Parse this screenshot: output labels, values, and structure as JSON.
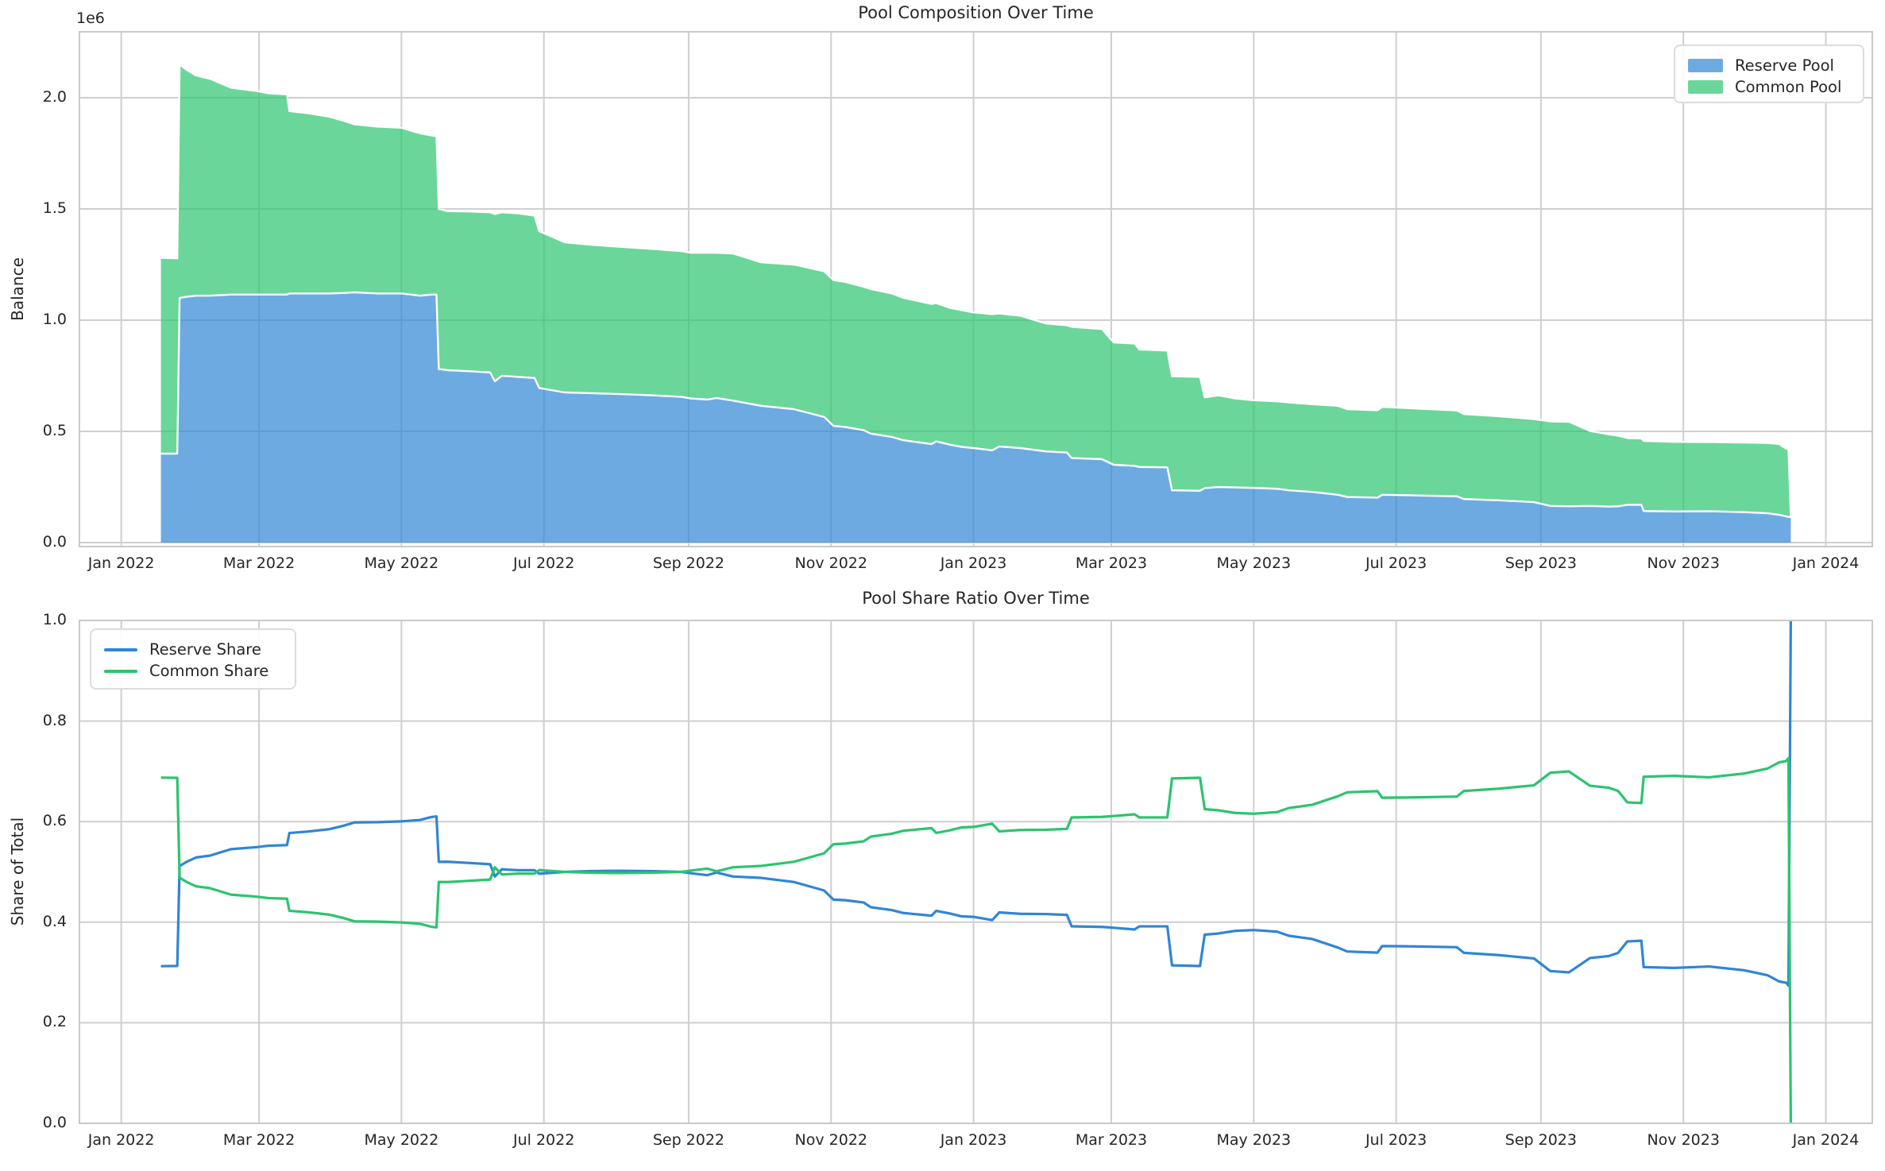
{
  "figure": {
    "background": "#ffffff",
    "grid_color": "#cfcfcf",
    "spine_color": "#c9c9c9",
    "text_color": "#262626"
  },
  "chart_data": [
    {
      "type": "area",
      "stacked": true,
      "title": "Pool Composition Over Time",
      "xlabel": "",
      "ylabel": "Balance",
      "y_offset_label": "1e6",
      "grid": true,
      "legend": {
        "position": "upper right",
        "entries": [
          {
            "label": "Reserve Pool",
            "color": "#6daae2"
          },
          {
            "label": "Common Pool",
            "color": "#6bd699"
          }
        ]
      },
      "ylim": [
        0,
        2300000
      ],
      "yticks": [
        {
          "value": 0,
          "label": "0.0"
        },
        {
          "value": 500000,
          "label": "0.5"
        },
        {
          "value": 1000000,
          "label": "1.0"
        },
        {
          "value": 1500000,
          "label": "1.5"
        },
        {
          "value": 2000000,
          "label": "2.0"
        }
      ],
      "xticks": [
        {
          "date": "2022-01-01",
          "label": "Jan 2022"
        },
        {
          "date": "2022-03-01",
          "label": "Mar 2022"
        },
        {
          "date": "2022-05-01",
          "label": "May 2022"
        },
        {
          "date": "2022-07-01",
          "label": "Jul 2022"
        },
        {
          "date": "2022-09-01",
          "label": "Sep 2022"
        },
        {
          "date": "2022-11-01",
          "label": "Nov 2022"
        },
        {
          "date": "2023-01-01",
          "label": "Jan 2023"
        },
        {
          "date": "2023-03-01",
          "label": "Mar 2023"
        },
        {
          "date": "2023-05-01",
          "label": "May 2023"
        },
        {
          "date": "2023-07-01",
          "label": "Jul 2023"
        },
        {
          "date": "2023-09-01",
          "label": "Sep 2023"
        },
        {
          "date": "2023-11-01",
          "label": "Nov 2023"
        },
        {
          "date": "2024-01-01",
          "label": "Jan 2024"
        }
      ],
      "dates": [
        "2022-01-18",
        "2022-01-25",
        "2022-01-26",
        "2022-01-29",
        "2022-02-02",
        "2022-02-08",
        "2022-02-17",
        "2022-02-28",
        "2022-03-05",
        "2022-03-13",
        "2022-03-14",
        "2022-03-22",
        "2022-03-31",
        "2022-04-06",
        "2022-04-11",
        "2022-04-21",
        "2022-05-01",
        "2022-05-09",
        "2022-05-14",
        "2022-05-16",
        "2022-05-17",
        "2022-05-21",
        "2022-05-31",
        "2022-06-08",
        "2022-06-10",
        "2022-06-13",
        "2022-06-20",
        "2022-06-27",
        "2022-06-29",
        "2022-07-10",
        "2022-07-20",
        "2022-08-02",
        "2022-08-17",
        "2022-08-29",
        "2022-09-02",
        "2022-09-09",
        "2022-09-13",
        "2022-09-20",
        "2022-10-02",
        "2022-10-16",
        "2022-10-29",
        "2022-11-02",
        "2022-11-07",
        "2022-11-15",
        "2022-11-18",
        "2022-11-27",
        "2022-12-02",
        "2022-12-14",
        "2022-12-16",
        "2022-12-22",
        "2022-12-27",
        "2023-01-01",
        "2023-01-09",
        "2023-01-12",
        "2023-01-21",
        "2023-02-01",
        "2023-02-10",
        "2023-02-12",
        "2023-02-25",
        "2023-03-02",
        "2023-03-11",
        "2023-03-13",
        "2023-03-25",
        "2023-03-27",
        "2023-04-08",
        "2023-04-10",
        "2023-04-16",
        "2023-04-23",
        "2023-05-01",
        "2023-05-11",
        "2023-05-16",
        "2023-05-26",
        "2023-06-06",
        "2023-06-10",
        "2023-06-23",
        "2023-06-25",
        "2023-07-05",
        "2023-07-27",
        "2023-07-30",
        "2023-08-14",
        "2023-08-29",
        "2023-09-05",
        "2023-09-13",
        "2023-09-22",
        "2023-09-30",
        "2023-10-04",
        "2023-10-08",
        "2023-10-14",
        "2023-10-15",
        "2023-10-28",
        "2023-11-12",
        "2023-11-27",
        "2023-12-07",
        "2023-12-12",
        "2023-12-15",
        "2023-12-16",
        "2023-12-17"
      ],
      "series": [
        {
          "name": "Reserve Pool",
          "line_color": "#2f86d5",
          "fill_opacity": 0.7,
          "edge_color": "#ffffff",
          "values": [
            400000,
            400000,
            1100000,
            1105000,
            1110000,
            1110000,
            1115000,
            1115000,
            1115000,
            1115000,
            1120000,
            1120000,
            1120000,
            1122000,
            1125000,
            1120000,
            1120000,
            1110000,
            1115000,
            1115000,
            780000,
            775000,
            770000,
            765000,
            725000,
            750000,
            745000,
            740000,
            695000,
            675000,
            672000,
            668000,
            662000,
            655000,
            648000,
            643000,
            650000,
            638000,
            615000,
            600000,
            565000,
            525000,
            520000,
            505000,
            490000,
            475000,
            460000,
            443000,
            455000,
            440000,
            430000,
            425000,
            415000,
            432000,
            425000,
            410000,
            405000,
            380000,
            375000,
            350000,
            345000,
            340000,
            338000,
            235000,
            233000,
            245000,
            250000,
            248000,
            246000,
            242000,
            235000,
            228000,
            215000,
            205000,
            202000,
            215000,
            213000,
            208000,
            196000,
            190000,
            182000,
            165000,
            163000,
            165000,
            162000,
            163000,
            170000,
            170000,
            142000,
            140000,
            141000,
            137000,
            132000,
            125000,
            118000,
            115000,
            115000
          ]
        },
        {
          "name": "Common Pool",
          "line_color": "#2bc46e",
          "fill_opacity": 0.7,
          "edge_color": "#ffffff",
          "values": [
            880000,
            878000,
            1050000,
            1020000,
            990000,
            975000,
            930000,
            915000,
            905000,
            900000,
            820000,
            810000,
            795000,
            775000,
            755000,
            750000,
            745000,
            730000,
            715000,
            712000,
            720000,
            715000,
            718000,
            720000,
            752000,
            735000,
            735000,
            730000,
            705000,
            675000,
            668000,
            662000,
            658000,
            655000,
            655000,
            660000,
            653000,
            662000,
            645000,
            650000,
            655000,
            655000,
            652000,
            645000,
            650000,
            645000,
            640000,
            630000,
            622000,
            615000,
            615000,
            610000,
            612000,
            598000,
            595000,
            575000,
            572000,
            590000,
            585000,
            550000,
            550000,
            528000,
            525000,
            513000,
            512000,
            408000,
            412000,
            400000,
            394000,
            393000,
            395000,
            394000,
            400000,
            395000,
            393000,
            395000,
            392000,
            386000,
            382000,
            378000,
            373000,
            380000,
            380000,
            337000,
            325000,
            318000,
            300000,
            298000,
            315000,
            313000,
            311000,
            313000,
            316000,
            318000,
            304000,
            305000,
            0
          ]
        }
      ]
    },
    {
      "type": "line",
      "title": "Pool Share Ratio Over Time",
      "xlabel": "",
      "ylabel": "Share of Total",
      "grid": true,
      "legend": {
        "position": "upper left",
        "entries": [
          {
            "label": "Reserve Share",
            "color": "#2f86d5"
          },
          {
            "label": "Common Share",
            "color": "#2bc46e"
          }
        ]
      },
      "ylim": [
        0,
        1
      ],
      "yticks": [
        {
          "value": 0,
          "label": "0.0"
        },
        {
          "value": 0.2,
          "label": "0.2"
        },
        {
          "value": 0.4,
          "label": "0.4"
        },
        {
          "value": 0.6,
          "label": "0.6"
        },
        {
          "value": 0.8,
          "label": "0.8"
        },
        {
          "value": 1.0,
          "label": "1.0"
        }
      ],
      "xticks": [
        {
          "date": "2022-01-01",
          "label": "Jan 2022"
        },
        {
          "date": "2022-03-01",
          "label": "Mar 2022"
        },
        {
          "date": "2022-05-01",
          "label": "May 2022"
        },
        {
          "date": "2022-07-01",
          "label": "Jul 2022"
        },
        {
          "date": "2022-09-01",
          "label": "Sep 2022"
        },
        {
          "date": "2022-11-01",
          "label": "Nov 2022"
        },
        {
          "date": "2023-01-01",
          "label": "Jan 2023"
        },
        {
          "date": "2023-03-01",
          "label": "Mar 2023"
        },
        {
          "date": "2023-05-01",
          "label": "May 2023"
        },
        {
          "date": "2023-07-01",
          "label": "Jul 2023"
        },
        {
          "date": "2023-09-01",
          "label": "Sep 2023"
        },
        {
          "date": "2023-11-01",
          "label": "Nov 2023"
        },
        {
          "date": "2024-01-01",
          "label": "Jan 2024"
        }
      ],
      "dates": [
        "2022-01-18",
        "2022-01-25",
        "2022-01-26",
        "2022-01-29",
        "2022-02-02",
        "2022-02-08",
        "2022-02-17",
        "2022-02-28",
        "2022-03-05",
        "2022-03-13",
        "2022-03-14",
        "2022-03-22",
        "2022-03-31",
        "2022-04-06",
        "2022-04-11",
        "2022-04-21",
        "2022-05-01",
        "2022-05-09",
        "2022-05-14",
        "2022-05-16",
        "2022-05-17",
        "2022-05-21",
        "2022-05-31",
        "2022-06-08",
        "2022-06-10",
        "2022-06-13",
        "2022-06-20",
        "2022-06-27",
        "2022-06-29",
        "2022-07-10",
        "2022-07-20",
        "2022-08-02",
        "2022-08-17",
        "2022-08-29",
        "2022-09-02",
        "2022-09-09",
        "2022-09-13",
        "2022-09-20",
        "2022-10-02",
        "2022-10-16",
        "2022-10-29",
        "2022-11-02",
        "2022-11-07",
        "2022-11-15",
        "2022-11-18",
        "2022-11-27",
        "2022-12-02",
        "2022-12-14",
        "2022-12-16",
        "2022-12-22",
        "2022-12-27",
        "2023-01-01",
        "2023-01-09",
        "2023-01-12",
        "2023-01-21",
        "2023-02-01",
        "2023-02-10",
        "2023-02-12",
        "2023-02-25",
        "2023-03-02",
        "2023-03-11",
        "2023-03-13",
        "2023-03-25",
        "2023-03-27",
        "2023-04-08",
        "2023-04-10",
        "2023-04-16",
        "2023-04-23",
        "2023-05-01",
        "2023-05-11",
        "2023-05-16",
        "2023-05-26",
        "2023-06-06",
        "2023-06-10",
        "2023-06-23",
        "2023-06-25",
        "2023-07-05",
        "2023-07-27",
        "2023-07-30",
        "2023-08-14",
        "2023-08-29",
        "2023-09-05",
        "2023-09-13",
        "2023-09-22",
        "2023-09-30",
        "2023-10-04",
        "2023-10-08",
        "2023-10-14",
        "2023-10-15",
        "2023-10-28",
        "2023-11-12",
        "2023-11-27",
        "2023-12-07",
        "2023-12-12",
        "2023-12-15",
        "2023-12-16",
        "2023-12-17"
      ],
      "series": [
        {
          "name": "Reserve Share",
          "line_color": "#2f86d5",
          "values": [
            0.3125,
            0.313,
            0.5116,
            0.52,
            0.5286,
            0.5324,
            0.5452,
            0.5493,
            0.552,
            0.5533,
            0.5773,
            0.5803,
            0.5849,
            0.5915,
            0.5984,
            0.5989,
            0.6005,
            0.6033,
            0.6093,
            0.6103,
            0.52,
            0.5201,
            0.5175,
            0.5152,
            0.4909,
            0.5051,
            0.5034,
            0.5034,
            0.4964,
            0.5,
            0.5015,
            0.5023,
            0.5015,
            0.5,
            0.4973,
            0.4935,
            0.4988,
            0.4908,
            0.4881,
            0.48,
            0.4631,
            0.4449,
            0.4437,
            0.4391,
            0.4298,
            0.4241,
            0.4182,
            0.4129,
            0.4225,
            0.4171,
            0.4115,
            0.4106,
            0.4041,
            0.4194,
            0.4167,
            0.4162,
            0.4145,
            0.3918,
            0.3906,
            0.3889,
            0.3855,
            0.3917,
            0.3917,
            0.3142,
            0.3128,
            0.3752,
            0.3776,
            0.3827,
            0.3844,
            0.3811,
            0.373,
            0.3666,
            0.3496,
            0.3417,
            0.3395,
            0.3525,
            0.3521,
            0.3502,
            0.3391,
            0.3345,
            0.3279,
            0.3028,
            0.3002,
            0.3287,
            0.3326,
            0.3389,
            0.3617,
            0.3632,
            0.3107,
            0.3091,
            0.3119,
            0.3044,
            0.2946,
            0.2822,
            0.2796,
            0.2738,
            1.0
          ]
        },
        {
          "name": "Common Share",
          "line_color": "#2bc46e",
          "values": [
            0.6875,
            0.687,
            0.4884,
            0.48,
            0.4714,
            0.4676,
            0.4548,
            0.4507,
            0.448,
            0.4467,
            0.4227,
            0.4197,
            0.4151,
            0.4085,
            0.4016,
            0.4011,
            0.3995,
            0.3967,
            0.3907,
            0.3897,
            0.48,
            0.4799,
            0.4825,
            0.4848,
            0.5091,
            0.4949,
            0.4966,
            0.4966,
            0.5036,
            0.5,
            0.4985,
            0.4977,
            0.4985,
            0.5,
            0.5027,
            0.5065,
            0.5012,
            0.5092,
            0.5119,
            0.52,
            0.5369,
            0.5551,
            0.5563,
            0.5609,
            0.5702,
            0.5759,
            0.5818,
            0.5871,
            0.5775,
            0.5829,
            0.5885,
            0.5894,
            0.5959,
            0.5806,
            0.5833,
            0.5838,
            0.5855,
            0.6082,
            0.6094,
            0.6111,
            0.6145,
            0.6083,
            0.6083,
            0.6858,
            0.6872,
            0.6248,
            0.6224,
            0.6173,
            0.6156,
            0.6189,
            0.627,
            0.6334,
            0.6504,
            0.6583,
            0.6605,
            0.6475,
            0.6479,
            0.6498,
            0.6609,
            0.6655,
            0.6721,
            0.6972,
            0.6998,
            0.6713,
            0.6674,
            0.6611,
            0.6383,
            0.6368,
            0.6893,
            0.6909,
            0.6881,
            0.6956,
            0.7054,
            0.7178,
            0.7204,
            0.7262,
            0.0
          ]
        }
      ]
    }
  ]
}
